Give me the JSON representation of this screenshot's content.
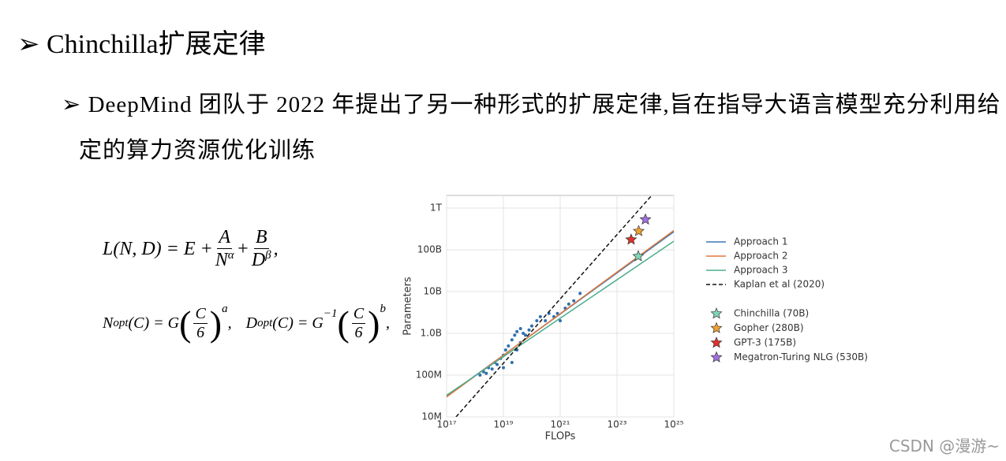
{
  "heading": "Chinchilla扩展定律",
  "bullet": "DeepMind 团队于 2022 年提出了另一种形式的扩展定律,旨在指导大语言模型充分利用给定的算力资源优化训练",
  "formula_1": [
    "L(N, D) = E +",
    "A",
    "N",
    "α",
    "+",
    "B",
    "D",
    "β",
    ","
  ],
  "formula_2": [
    "N",
    "opt",
    "(C) = G",
    "(",
    "C",
    "6",
    ")",
    "a",
    ",",
    "D",
    "opt",
    "(C) = G",
    "−1",
    "(",
    "C",
    "6",
    ")",
    "b",
    ","
  ],
  "watermark": "CSDN @漫游~",
  "chart_data": {
    "type": "line",
    "xlabel": "FLOPs",
    "ylabel": "Parameters",
    "xscale": "log",
    "yscale": "log",
    "grid": true,
    "xlim": [
      1e+17,
      1e+25
    ],
    "xticks": [
      {
        "value": 1e+17,
        "label": "10¹⁷"
      },
      {
        "value": 1e+19,
        "label": "10¹⁹"
      },
      {
        "value": 1e+21,
        "label": "10²¹"
      },
      {
        "value": 1e+23,
        "label": "10²³"
      },
      {
        "value": 1e+25,
        "label": "10²⁵"
      }
    ],
    "ylim": [
      10000000.0,
      2000000000000.0
    ],
    "yticks": [
      {
        "value": 10000000.0,
        "label": "10M"
      },
      {
        "value": 100000000.0,
        "label": "100M"
      },
      {
        "value": 1000000000.0,
        "label": "1.0B"
      },
      {
        "value": 10000000000.0,
        "label": "10B"
      },
      {
        "value": 100000000000.0,
        "label": "100B"
      },
      {
        "value": 1000000000000.0,
        "label": "1T"
      }
    ],
    "series": [
      {
        "name": "Approach 1",
        "color": "#3b78b4",
        "dash": false,
        "x": [
          1e+17,
          1e+25
        ],
        "values": [
          31000000.0,
          270000000000.0
        ]
      },
      {
        "name": "Approach 2",
        "color": "#e0773c",
        "dash": false,
        "x": [
          1e+17,
          1e+25
        ],
        "values": [
          30000000.0,
          290000000000.0
        ]
      },
      {
        "name": "Approach 3",
        "color": "#4aae8c",
        "dash": false,
        "x": [
          1e+17,
          1e+25
        ],
        "values": [
          33000000.0,
          160000000000.0
        ]
      },
      {
        "name": "Kaplan et al (2020)",
        "color": "#111111",
        "dash": true,
        "x": [
          2.15e+17,
          1.66e+24
        ],
        "values": [
          10000000.0,
          2000000000000.0
        ]
      }
    ],
    "points": {
      "color": "#2f6faf",
      "x": [
        1.5e+18,
        2e+18,
        2.5e+18,
        3e+18,
        4e+18,
        5e+18,
        6e+18,
        8e+18,
        1e+19,
        1.2e+19,
        1.5e+19,
        2e+19,
        2.5e+19,
        3e+19,
        4e+19,
        5e+19,
        6e+19,
        8e+19,
        1e+20,
        1.5e+20,
        2e+20,
        3e+20,
        4e+20,
        6e+20,
        8e+20,
        1e+21,
        1.5e+21,
        2e+21,
        3e+21,
        5e+21,
        1e+19,
        2e+19,
        3e+19,
        4e+19
      ],
      "values": [
        100000000.0,
        120000000.0,
        110000000.0,
        150000000.0,
        140000000.0,
        200000000.0,
        180000000.0,
        250000000.0,
        300000000.0,
        400000000.0,
        500000000.0,
        700000000.0,
        900000000.0,
        1100000000.0,
        1300000000.0,
        1000000000.0,
        900000000.0,
        1200000000.0,
        1500000000.0,
        2000000000.0,
        2500000000.0,
        2000000000.0,
        3000000000.0,
        2500000000.0,
        3000000000.0,
        2000000000.0,
        4000000000.0,
        5000000000.0,
        6000000000.0,
        9000000000.0,
        150000000.0,
        200000000.0,
        400000000.0,
        600000000.0
      ]
    },
    "models": [
      {
        "name": "Chinchilla (70B)",
        "color": "#7fd6b5",
        "x": 5.6e+23,
        "value": 70000000000.0
      },
      {
        "name": "Gopher (280B)",
        "color": "#f0a030",
        "x": 5.8e+23,
        "value": 280000000000.0
      },
      {
        "name": "GPT-3 (175B)",
        "color": "#e0302a",
        "x": 3.14e+23,
        "value": 175000000000.0
      },
      {
        "name": "Megatron-Turing NLG (530B)",
        "color": "#a070e0",
        "x": 1e+24,
        "value": 530000000000.0
      }
    ]
  }
}
